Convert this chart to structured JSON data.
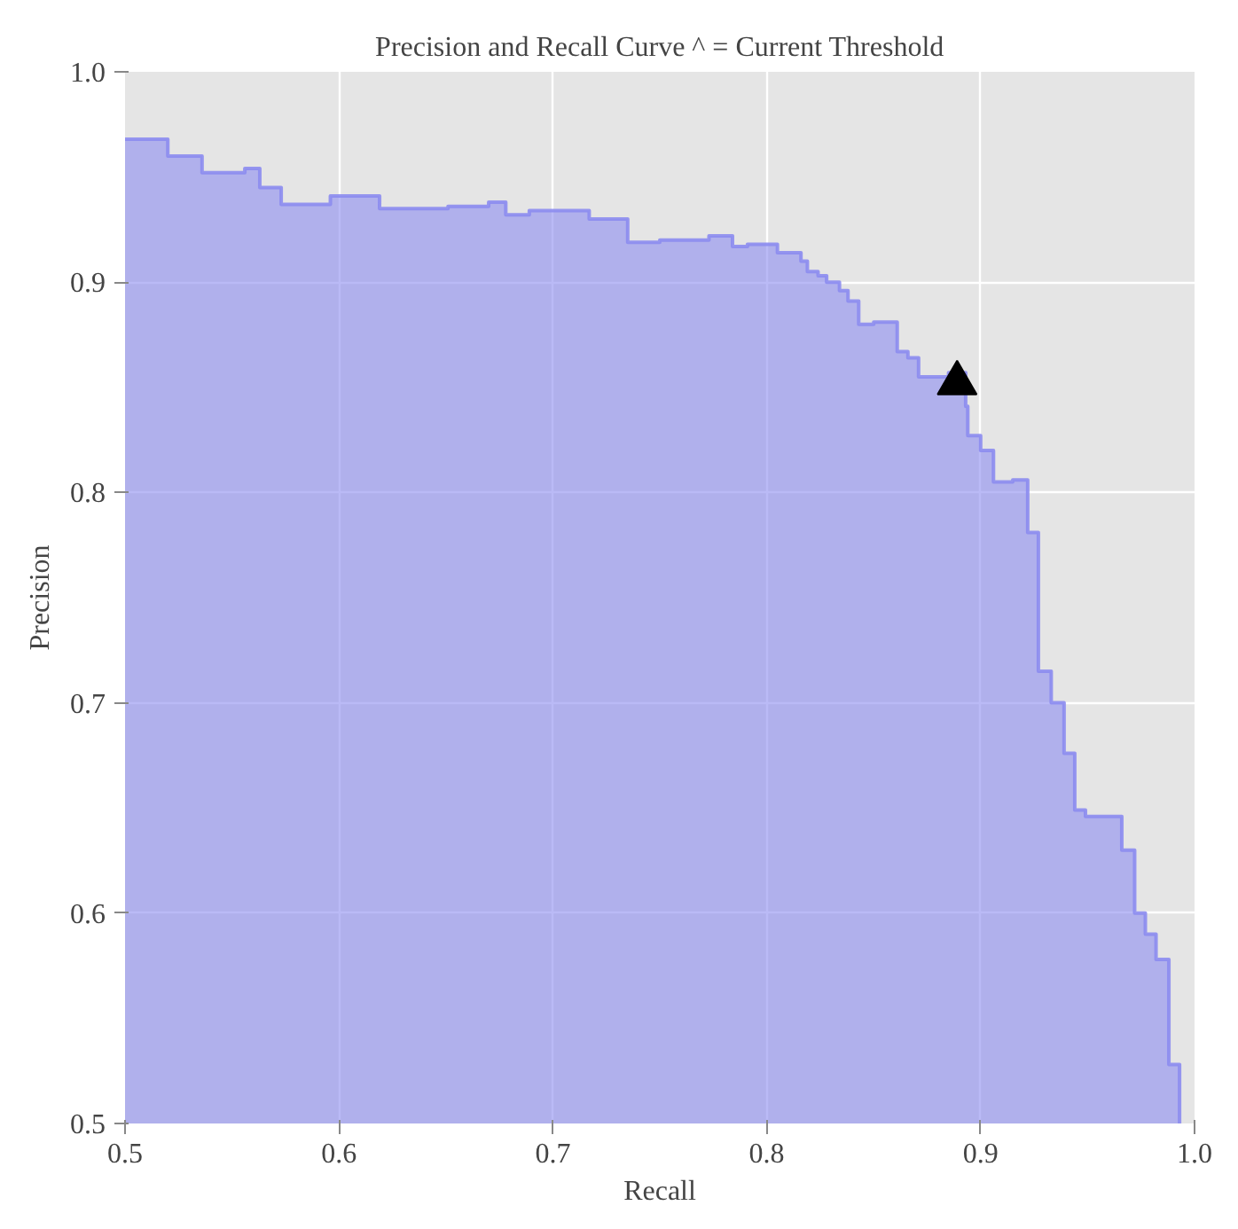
{
  "chart_data": {
    "type": "area",
    "title": "Precision and Recall Curve ^ = Current Threshold",
    "xlabel": "Recall",
    "ylabel": "Precision",
    "xlim": [
      0.5,
      1.0
    ],
    "ylim": [
      0.5,
      1.0
    ],
    "xticks": [
      0.5,
      0.6,
      0.7,
      0.8,
      0.9,
      {
        "value": 1.0,
        "label": "1.0"
      }
    ],
    "yticks": [
      0.5,
      0.6,
      0.7,
      0.8,
      0.9,
      {
        "value": 1.0,
        "label": "1.0"
      }
    ],
    "grid": true,
    "series": [
      {
        "color": "#8c8cf0",
        "x": [
          0.5,
          0.52,
          0.536,
          0.556,
          0.563,
          0.573,
          0.596,
          0.619,
          0.651,
          0.67,
          0.678,
          0.689,
          0.717,
          0.735,
          0.75,
          0.764,
          0.773,
          0.784,
          0.791,
          0.805,
          0.816,
          0.819,
          0.824,
          0.828,
          0.834,
          0.838,
          0.843,
          0.85,
          0.861,
          0.866,
          0.871,
          0.885,
          0.893,
          0.894,
          0.9,
          0.906,
          0.915,
          0.922,
          0.927,
          0.933,
          0.939,
          0.944,
          0.949,
          0.966,
          0.972,
          0.977,
          0.982,
          0.988,
          0.993
        ],
        "values": [
          0.968,
          0.96,
          0.952,
          0.954,
          0.945,
          0.937,
          0.941,
          0.935,
          0.936,
          0.938,
          0.932,
          0.934,
          0.93,
          0.919,
          0.92,
          0.92,
          0.922,
          0.917,
          0.918,
          0.914,
          0.91,
          0.905,
          0.903,
          0.9,
          0.896,
          0.891,
          0.88,
          0.881,
          0.867,
          0.864,
          0.855,
          0.857,
          0.841,
          0.827,
          0.82,
          0.805,
          0.806,
          0.781,
          0.715,
          0.7,
          0.676,
          0.649,
          0.646,
          0.63,
          0.6,
          0.59,
          0.578,
          0.528,
          0.5
        ]
      },
      {
        "type": "scatter",
        "color": "#000000",
        "marker": "triangle",
        "x": [
          0.889
        ],
        "values": [
          0.852
        ]
      }
    ]
  }
}
